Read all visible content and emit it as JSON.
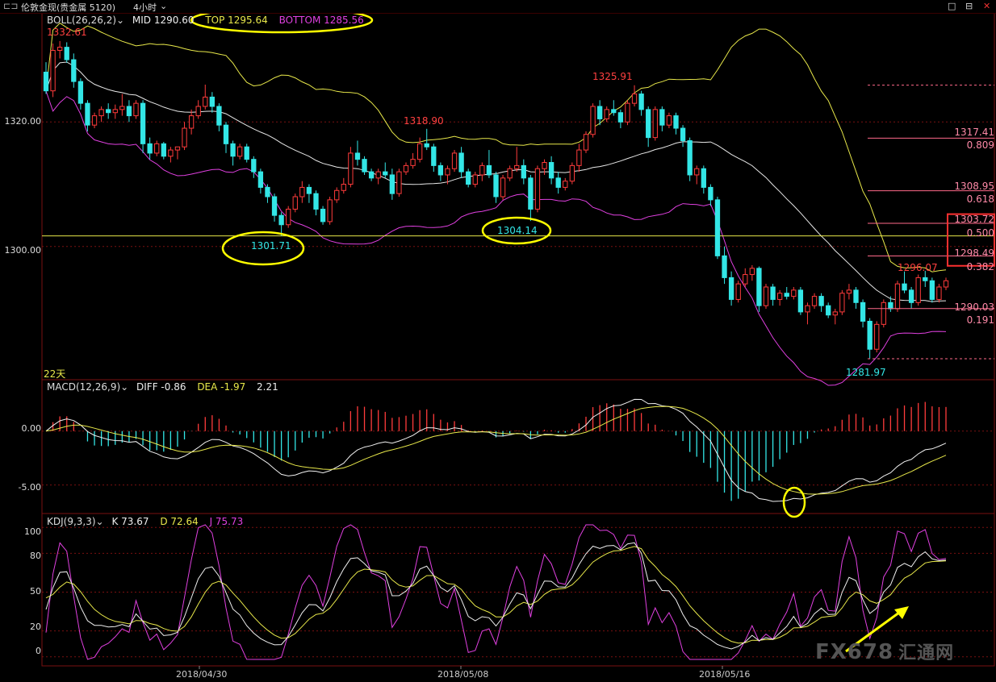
{
  "window": {
    "title_icon": "⊏⊐",
    "instrument": "伦敦金现(贵金属 5120)",
    "period": "4小时",
    "dropdown_icon": "chevron-down-icon",
    "controls": [
      "□",
      "⊟",
      "✕"
    ]
  },
  "boll": {
    "name": "BOLL(26,26,2)",
    "mid": "MID 1290.60",
    "top": "TOP 1295.64",
    "bottom": "BOTTOM 1285.56"
  },
  "macd": {
    "name": "MACD(12,26,9)",
    "diff": "DIFF -0.86",
    "dea": "DEA -1.97",
    "macd": "2.21"
  },
  "kdj": {
    "name": "KDJ(9,3,3)",
    "k": "K 73.67",
    "d": "D 72.64",
    "j": "J 75.73"
  },
  "price_axis": [
    "1320.00",
    "1300.00"
  ],
  "macd_axis": [
    "0.00",
    "-5.00"
  ],
  "kdj_axis": [
    "100",
    "80",
    "50",
    "20",
    "0"
  ],
  "dates": [
    "2018/04/30",
    "2018/05/08",
    "2018/05/16"
  ],
  "tag_22": "22天",
  "annotations": {
    "high_start": "1332.61",
    "low1": "1301.71",
    "high1": "1318.90",
    "low2": "1304.14",
    "high2": "1325.91",
    "high3": "1296.07",
    "low3": "1281.97"
  },
  "fib_levels": [
    {
      "price": "1317.41",
      "ratio": "0.809"
    },
    {
      "price": "1308.95",
      "ratio": "0.618"
    },
    {
      "price": "1303.72",
      "ratio": "0.500"
    },
    {
      "price": "1298.49",
      "ratio": "0.382"
    },
    {
      "price": "1290.03",
      "ratio": "0.191"
    }
  ],
  "watermark": {
    "brand": "FX678",
    "cn": "汇通网"
  },
  "colors": {
    "up": "#ff3b3b",
    "down": "#33e6e6",
    "yellow": "#e8e84a",
    "magenta": "#e040e0",
    "grid": "#7a1010",
    "fib": "#ff6a8a"
  },
  "chart_data": {
    "type": "candlestick",
    "instrument": "伦敦金现",
    "period": "4小时",
    "price_ylim": [
      1279,
      1337
    ],
    "candles_ohlc": [
      [
        1328.0,
        1329.6,
        1324.5,
        1325.0
      ],
      [
        1325.0,
        1332.6,
        1324.0,
        1331.5
      ],
      [
        1331.5,
        1333.0,
        1330.2,
        1332.0
      ],
      [
        1332.0,
        1332.8,
        1329.5,
        1330.0
      ],
      [
        1330.0,
        1331.0,
        1325.5,
        1326.5
      ],
      [
        1326.5,
        1327.0,
        1322.0,
        1323.0
      ],
      [
        1323.0,
        1323.5,
        1318.5,
        1319.5
      ],
      [
        1319.5,
        1321.5,
        1319.0,
        1321.0
      ],
      [
        1321.0,
        1322.5,
        1320.0,
        1322.0
      ],
      [
        1322.0,
        1323.0,
        1320.5,
        1321.5
      ],
      [
        1321.5,
        1322.8,
        1320.5,
        1322.0
      ],
      [
        1322.0,
        1324.5,
        1321.0,
        1322.5
      ],
      [
        1322.5,
        1323.5,
        1320.0,
        1321.0
      ],
      [
        1321.0,
        1323.5,
        1320.5,
        1323.0
      ],
      [
        1323.0,
        1323.5,
        1315.0,
        1316.5
      ],
      [
        1316.5,
        1317.5,
        1314.0,
        1315.0
      ],
      [
        1315.0,
        1317.0,
        1314.5,
        1316.5
      ],
      [
        1316.5,
        1316.8,
        1314.0,
        1314.5
      ],
      [
        1314.5,
        1316.0,
        1313.5,
        1315.5
      ],
      [
        1315.5,
        1316.0,
        1314.0,
        1316.0
      ],
      [
        1316.0,
        1320.0,
        1315.5,
        1319.0
      ],
      [
        1319.0,
        1322.0,
        1318.0,
        1321.0
      ],
      [
        1321.0,
        1323.5,
        1320.5,
        1322.5
      ],
      [
        1322.5,
        1326.0,
        1322.0,
        1324.0
      ],
      [
        1324.0,
        1324.8,
        1321.5,
        1322.5
      ],
      [
        1322.5,
        1323.0,
        1318.5,
        1319.5
      ],
      [
        1319.5,
        1320.0,
        1315.0,
        1316.5
      ],
      [
        1316.5,
        1317.0,
        1313.0,
        1314.5
      ],
      [
        1314.5,
        1316.5,
        1314.0,
        1316.0
      ],
      [
        1316.0,
        1316.5,
        1313.5,
        1314.0
      ],
      [
        1314.0,
        1314.5,
        1311.0,
        1312.0
      ],
      [
        1312.0,
        1312.5,
        1308.5,
        1309.5
      ],
      [
        1309.5,
        1310.0,
        1307.0,
        1308.0
      ],
      [
        1308.0,
        1308.5,
        1304.0,
        1305.0
      ],
      [
        1305.0,
        1305.5,
        1301.7,
        1303.5
      ],
      [
        1303.5,
        1306.5,
        1303.0,
        1306.0
      ],
      [
        1306.0,
        1308.5,
        1305.5,
        1308.0
      ],
      [
        1308.0,
        1310.5,
        1307.0,
        1309.5
      ],
      [
        1309.5,
        1310.0,
        1307.0,
        1308.5
      ],
      [
        1308.5,
        1309.0,
        1305.0,
        1306.0
      ],
      [
        1306.0,
        1306.5,
        1303.5,
        1304.0
      ],
      [
        1304.0,
        1308.0,
        1303.5,
        1307.5
      ],
      [
        1307.5,
        1309.5,
        1307.0,
        1309.0
      ],
      [
        1309.0,
        1311.0,
        1308.5,
        1310.0
      ],
      [
        1310.0,
        1316.0,
        1309.5,
        1315.0
      ],
      [
        1315.0,
        1317.0,
        1313.0,
        1314.0
      ],
      [
        1314.0,
        1314.5,
        1311.5,
        1312.0
      ],
      [
        1312.0,
        1312.5,
        1310.5,
        1311.0
      ],
      [
        1311.0,
        1312.5,
        1310.0,
        1312.0
      ],
      [
        1312.0,
        1313.5,
        1311.0,
        1311.5
      ],
      [
        1311.5,
        1312.5,
        1307.5,
        1308.5
      ],
      [
        1308.5,
        1312.5,
        1308.0,
        1312.0
      ],
      [
        1312.0,
        1313.5,
        1311.5,
        1313.0
      ],
      [
        1313.0,
        1315.0,
        1312.5,
        1314.0
      ],
      [
        1314.0,
        1317.5,
        1313.5,
        1316.5
      ],
      [
        1316.5,
        1318.9,
        1315.5,
        1316.0
      ],
      [
        1316.0,
        1316.5,
        1312.0,
        1313.0
      ],
      [
        1313.0,
        1313.5,
        1310.5,
        1311.5
      ],
      [
        1311.5,
        1313.0,
        1310.0,
        1312.5
      ],
      [
        1312.5,
        1315.5,
        1312.0,
        1315.0
      ],
      [
        1315.0,
        1316.0,
        1311.0,
        1312.0
      ],
      [
        1312.0,
        1312.5,
        1309.5,
        1310.0
      ],
      [
        1310.0,
        1312.0,
        1309.5,
        1311.5
      ],
      [
        1311.5,
        1313.5,
        1310.5,
        1313.0
      ],
      [
        1313.0,
        1315.5,
        1311.0,
        1311.5
      ],
      [
        1311.5,
        1312.0,
        1307.0,
        1308.0
      ],
      [
        1308.0,
        1311.5,
        1307.5,
        1311.0
      ],
      [
        1311.0,
        1313.0,
        1310.5,
        1312.5
      ],
      [
        1312.5,
        1316.0,
        1312.0,
        1313.0
      ],
      [
        1313.0,
        1314.0,
        1310.0,
        1311.0
      ],
      [
        1311.0,
        1311.5,
        1304.1,
        1306.0
      ],
      [
        1306.0,
        1313.0,
        1305.5,
        1312.5
      ],
      [
        1312.5,
        1314.0,
        1311.5,
        1313.5
      ],
      [
        1313.5,
        1314.5,
        1310.0,
        1311.0
      ],
      [
        1311.0,
        1312.0,
        1308.5,
        1309.5
      ],
      [
        1309.5,
        1311.0,
        1309.0,
        1310.5
      ],
      [
        1310.5,
        1313.5,
        1310.0,
        1313.0
      ],
      [
        1313.0,
        1316.5,
        1312.0,
        1315.5
      ],
      [
        1315.5,
        1318.5,
        1315.0,
        1318.0
      ],
      [
        1318.0,
        1323.0,
        1317.5,
        1322.5
      ],
      [
        1322.5,
        1323.5,
        1319.5,
        1320.5
      ],
      [
        1320.5,
        1322.5,
        1320.0,
        1322.0
      ],
      [
        1322.0,
        1323.5,
        1321.0,
        1321.5
      ],
      [
        1321.5,
        1322.0,
        1319.0,
        1320.0
      ],
      [
        1320.0,
        1323.5,
        1319.5,
        1323.0
      ],
      [
        1323.0,
        1325.9,
        1322.5,
        1324.5
      ],
      [
        1324.5,
        1325.0,
        1321.0,
        1322.0
      ],
      [
        1322.0,
        1322.5,
        1316.0,
        1317.5
      ],
      [
        1317.5,
        1322.5,
        1317.0,
        1322.0
      ],
      [
        1322.0,
        1322.5,
        1318.5,
        1319.5
      ],
      [
        1319.5,
        1321.5,
        1319.0,
        1321.0
      ],
      [
        1321.0,
        1321.5,
        1318.0,
        1319.0
      ],
      [
        1319.0,
        1319.5,
        1316.0,
        1317.0
      ],
      [
        1317.0,
        1317.5,
        1310.5,
        1311.5
      ],
      [
        1311.5,
        1313.0,
        1310.0,
        1312.5
      ],
      [
        1312.5,
        1313.0,
        1308.5,
        1309.5
      ],
      [
        1309.5,
        1310.0,
        1306.5,
        1307.5
      ],
      [
        1307.5,
        1308.0,
        1298.0,
        1298.5
      ],
      [
        1298.5,
        1300.0,
        1294.0,
        1295.0
      ],
      [
        1295.0,
        1296.0,
        1290.5,
        1291.5
      ],
      [
        1291.5,
        1294.5,
        1291.0,
        1294.0
      ],
      [
        1294.0,
        1296.5,
        1293.5,
        1295.5
      ],
      [
        1295.5,
        1297.0,
        1294.5,
        1296.5
      ],
      [
        1296.5,
        1296.8,
        1289.5,
        1290.5
      ],
      [
        1290.5,
        1294.0,
        1290.0,
        1293.5
      ],
      [
        1293.5,
        1294.0,
        1290.5,
        1291.5
      ],
      [
        1291.5,
        1293.0,
        1290.5,
        1292.5
      ],
      [
        1292.5,
        1293.5,
        1291.5,
        1292.0
      ],
      [
        1292.0,
        1293.5,
        1291.5,
        1293.0
      ],
      [
        1293.0,
        1293.5,
        1289.0,
        1289.5
      ],
      [
        1289.5,
        1291.0,
        1287.5,
        1290.5
      ],
      [
        1290.5,
        1292.5,
        1290.0,
        1292.0
      ],
      [
        1292.0,
        1292.5,
        1289.5,
        1290.5
      ],
      [
        1290.5,
        1291.0,
        1288.5,
        1289.0
      ],
      [
        1289.0,
        1290.0,
        1287.5,
        1289.5
      ],
      [
        1289.5,
        1293.0,
        1289.0,
        1292.5
      ],
      [
        1292.5,
        1294.0,
        1291.5,
        1293.0
      ],
      [
        1293.0,
        1293.5,
        1290.0,
        1291.0
      ],
      [
        1291.0,
        1291.5,
        1287.0,
        1288.0
      ],
      [
        1288.0,
        1288.5,
        1282.0,
        1283.5
      ],
      [
        1283.5,
        1288.0,
        1283.0,
        1287.5
      ],
      [
        1287.5,
        1291.5,
        1287.0,
        1291.0
      ],
      [
        1291.0,
        1292.0,
        1289.5,
        1290.0
      ],
      [
        1290.0,
        1294.5,
        1289.5,
        1294.0
      ],
      [
        1294.0,
        1296.0,
        1292.5,
        1293.0
      ],
      [
        1293.0,
        1293.5,
        1290.0,
        1291.0
      ],
      [
        1291.0,
        1295.5,
        1290.5,
        1295.0
      ],
      [
        1295.0,
        1296.1,
        1293.5,
        1294.5
      ],
      [
        1294.5,
        1295.0,
        1291.0,
        1291.5
      ],
      [
        1291.5,
        1294.0,
        1291.0,
        1293.5
      ],
      [
        1293.5,
        1295.0,
        1293.0,
        1294.5
      ]
    ],
    "macd_ylim": [
      -7.5,
      3.5
    ],
    "kdj_ylim": [
      -2,
      102
    ]
  }
}
